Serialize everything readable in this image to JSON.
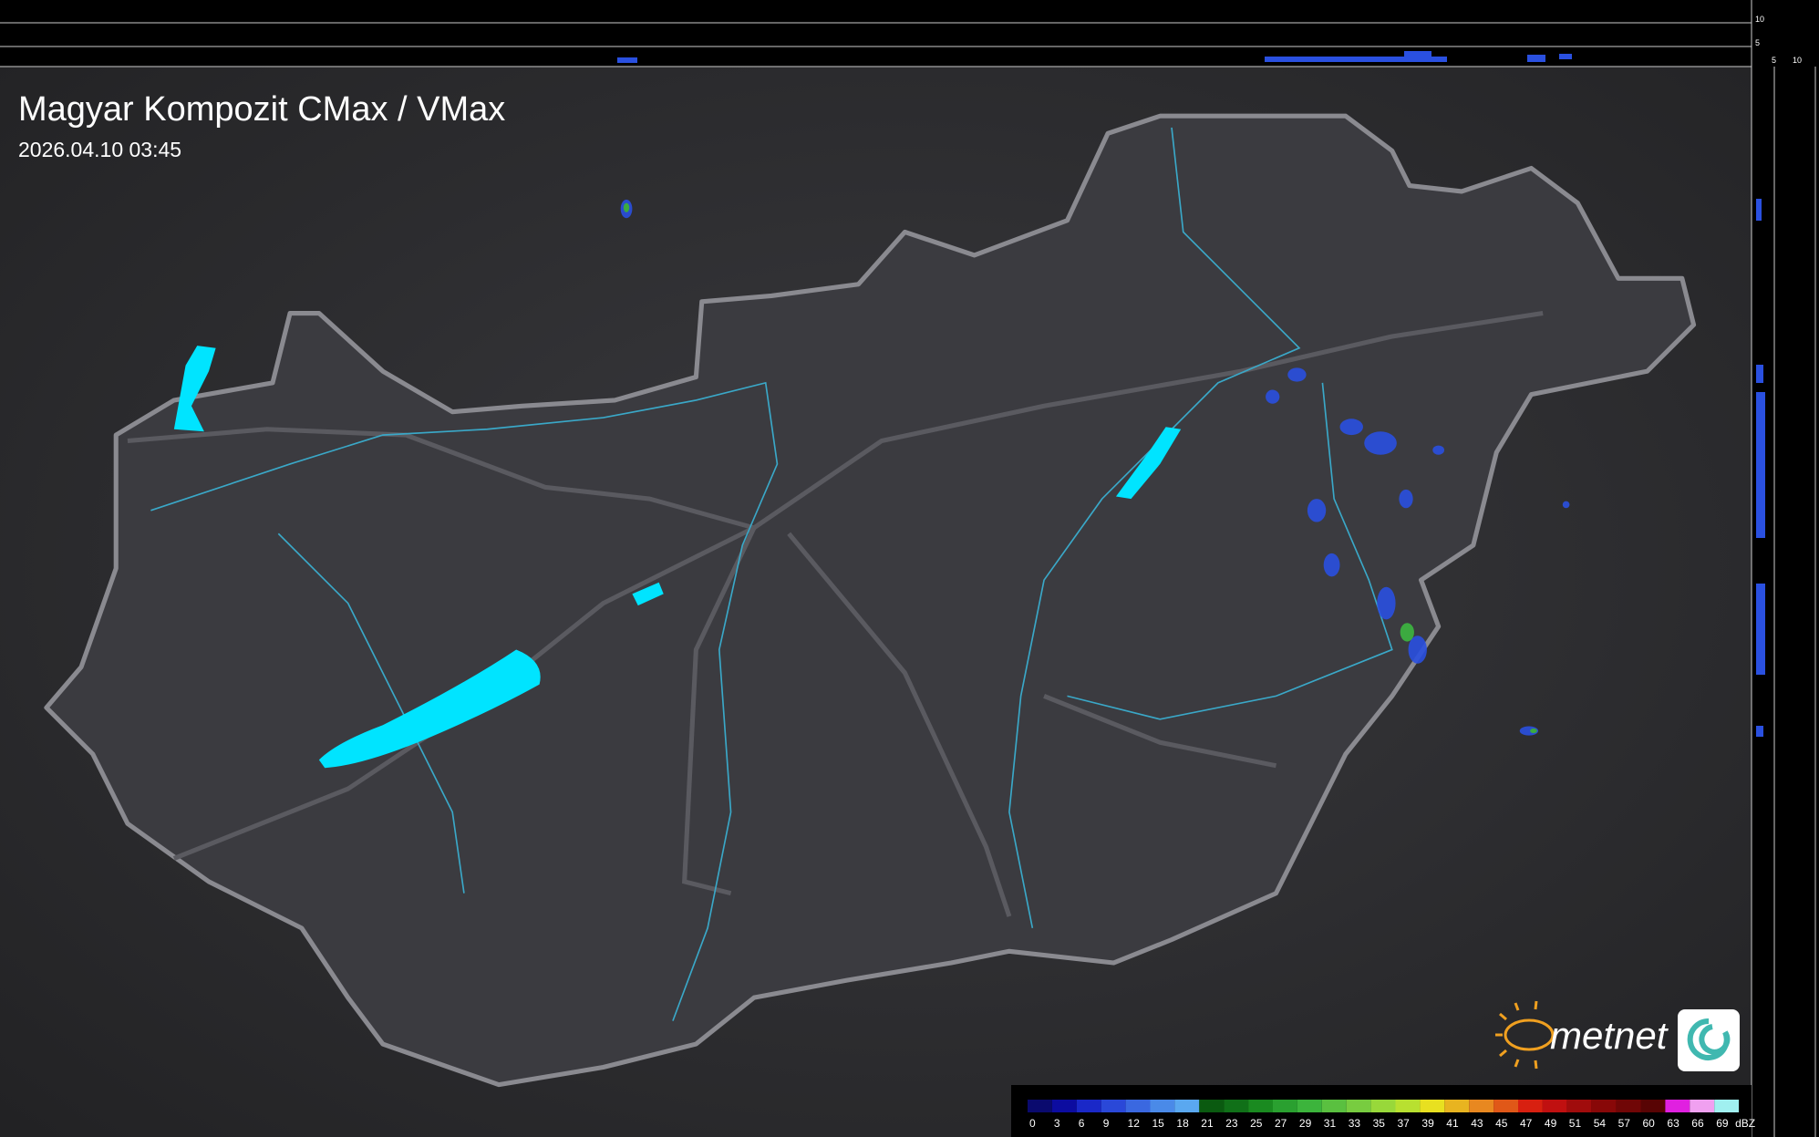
{
  "header": {
    "title": "Magyar Kompozit CMax / VMax",
    "timestamp": "2026.04.10 03:45"
  },
  "profile": {
    "top_ticks": [
      "10",
      "5"
    ],
    "side_ticks": [
      "5",
      "10"
    ]
  },
  "logo": "metnet",
  "legend": {
    "unit": "dBZ",
    "levels": [
      0,
      3,
      6,
      9,
      12,
      15,
      18,
      21,
      23,
      25,
      27,
      29,
      31,
      33,
      35,
      37,
      39,
      41,
      43,
      45,
      47,
      49,
      51,
      54,
      57,
      60,
      63,
      66,
      69
    ],
    "colors": [
      "#0a0a6e",
      "#0c0ca0",
      "#1a28c8",
      "#2a48d8",
      "#3a68e0",
      "#4a8ae8",
      "#5aa8f0",
      "#0a5a10",
      "#107018",
      "#1a8a20",
      "#2aa030",
      "#3cb43c",
      "#5ac040",
      "#78cc40",
      "#98d83a",
      "#b8e030",
      "#e8e020",
      "#e8b420",
      "#e88820",
      "#e05818",
      "#d82010",
      "#c01010",
      "#a00c0c",
      "#880808",
      "#700606",
      "#580404",
      "#e020e0",
      "#f0a0f0",
      "#a0f0f0"
    ]
  }
}
